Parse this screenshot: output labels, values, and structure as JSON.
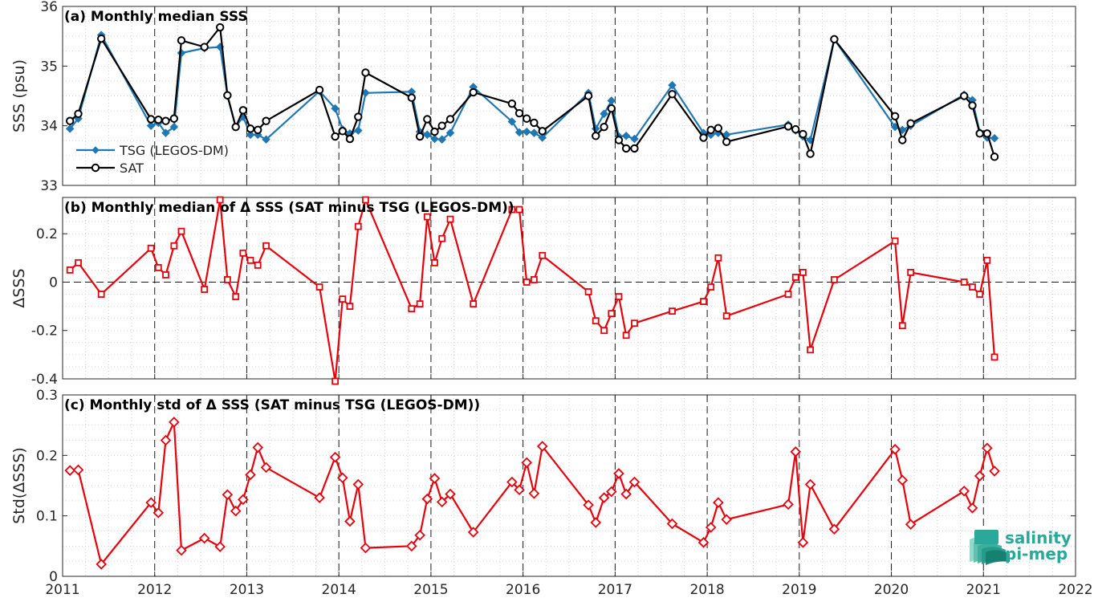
{
  "chart_data": [
    {
      "type": "line",
      "panel": "a",
      "title": "(a) Monthly median SSS",
      "ylabel": "SSS (psu)",
      "xlim": [
        2011,
        2022
      ],
      "ylim": [
        33,
        36
      ],
      "yticks": [
        33,
        34,
        35,
        36
      ],
      "ytick_labels": [
        "33",
        "34",
        "35",
        "36"
      ],
      "legend_position": "lower-left",
      "series": [
        {
          "name": "TSG (LEGOS-DM)",
          "color": "#1f77b4",
          "marker": "diamond",
          "x": [
            2011.08,
            2011.17,
            2011.42,
            2011.96,
            2012.04,
            2012.12,
            2012.21,
            2012.29,
            2012.54,
            2012.71,
            2012.79,
            2012.88,
            2012.96,
            2013.04,
            2013.12,
            2013.21,
            2013.79,
            2013.96,
            2014.04,
            2014.12,
            2014.21,
            2014.29,
            2014.79,
            2014.88,
            2014.96,
            2015.04,
            2015.12,
            2015.21,
            2015.46,
            2015.88,
            2015.96,
            2016.04,
            2016.12,
            2016.21,
            2016.71,
            2016.79,
            2016.88,
            2016.96,
            2017.04,
            2017.12,
            2017.21,
            2017.62,
            2017.96,
            2018.04,
            2018.12,
            2018.21,
            2018.88,
            2018.96,
            2019.04,
            2019.12,
            2019.38,
            2020.04,
            2020.12,
            2020.21,
            2020.79,
            2020.88,
            2020.96,
            2021.04,
            2021.12
          ],
          "y": [
            33.95,
            34.12,
            35.52,
            34.0,
            34.05,
            33.88,
            33.98,
            35.22,
            35.3,
            35.32,
            34.5,
            33.98,
            34.15,
            33.85,
            33.85,
            33.77,
            34.58,
            34.29,
            33.94,
            33.87,
            33.92,
            34.55,
            34.57,
            33.9,
            33.85,
            33.78,
            33.77,
            33.88,
            34.65,
            34.07,
            33.89,
            33.9,
            33.88,
            33.8,
            34.55,
            33.95,
            34.2,
            34.42,
            33.82,
            33.83,
            33.78,
            34.68,
            33.88,
            33.85,
            33.88,
            33.85,
            34.02,
            33.92,
            33.82,
            33.76,
            35.45,
            33.98,
            33.93,
            34.0,
            34.52,
            34.43,
            33.89,
            33.8,
            33.79
          ]
        },
        {
          "name": "SAT",
          "color": "#000000",
          "marker": "circle",
          "x": [
            2011.08,
            2011.17,
            2011.42,
            2011.96,
            2012.04,
            2012.12,
            2012.21,
            2012.29,
            2012.54,
            2012.71,
            2012.79,
            2012.88,
            2012.96,
            2013.04,
            2013.12,
            2013.21,
            2013.79,
            2013.96,
            2014.04,
            2014.12,
            2014.21,
            2014.29,
            2014.79,
            2014.88,
            2014.96,
            2015.04,
            2015.12,
            2015.21,
            2015.46,
            2015.88,
            2015.96,
            2016.04,
            2016.12,
            2016.21,
            2016.71,
            2016.79,
            2016.88,
            2016.96,
            2017.04,
            2017.12,
            2017.21,
            2017.62,
            2017.96,
            2018.04,
            2018.12,
            2018.21,
            2018.88,
            2018.96,
            2019.04,
            2019.12,
            2019.38,
            2020.04,
            2020.12,
            2020.21,
            2020.79,
            2020.88,
            2020.96,
            2021.04,
            2021.12
          ],
          "y": [
            34.08,
            34.2,
            35.46,
            34.11,
            34.1,
            34.08,
            34.12,
            35.43,
            35.32,
            35.65,
            34.51,
            33.98,
            34.26,
            33.95,
            33.93,
            34.08,
            34.6,
            33.82,
            33.91,
            33.78,
            34.15,
            34.89,
            34.47,
            33.82,
            34.11,
            33.9,
            34.0,
            34.11,
            34.56,
            34.37,
            34.21,
            34.12,
            34.05,
            33.91,
            34.5,
            33.83,
            33.98,
            34.29,
            33.76,
            33.62,
            33.62,
            34.53,
            33.8,
            33.93,
            33.96,
            33.73,
            33.99,
            33.94,
            33.86,
            33.53,
            35.45,
            34.16,
            33.76,
            34.04,
            34.5,
            34.34,
            33.87,
            33.87,
            33.48
          ]
        }
      ]
    },
    {
      "type": "line",
      "panel": "b",
      "title": "(b) Monthly median of Δ SSS (SAT minus TSG (LEGOS-DM))",
      "ylabel": "ΔSSS",
      "xlim": [
        2011,
        2022
      ],
      "ylim": [
        -0.4,
        0.35
      ],
      "yticks": [
        -0.4,
        -0.2,
        0,
        0.2
      ],
      "ytick_labels": [
        "-0.4",
        "-0.2",
        "0",
        "0.2"
      ],
      "zero_line": true,
      "series": [
        {
          "name": "",
          "color": "#e8000b",
          "marker": "square",
          "x": [
            2011.08,
            2011.17,
            2011.42,
            2011.96,
            2012.04,
            2012.12,
            2012.21,
            2012.29,
            2012.54,
            2012.71,
            2012.79,
            2012.88,
            2012.96,
            2013.04,
            2013.12,
            2013.21,
            2013.79,
            2013.96,
            2014.04,
            2014.12,
            2014.21,
            2014.29,
            2014.79,
            2014.88,
            2014.96,
            2015.04,
            2015.12,
            2015.21,
            2015.46,
            2015.88,
            2015.96,
            2016.04,
            2016.12,
            2016.21,
            2016.71,
            2016.79,
            2016.88,
            2016.96,
            2017.04,
            2017.12,
            2017.21,
            2017.62,
            2017.96,
            2018.04,
            2018.12,
            2018.21,
            2018.88,
            2018.96,
            2019.04,
            2019.12,
            2019.38,
            2020.04,
            2020.12,
            2020.21,
            2020.79,
            2020.88,
            2020.96,
            2021.04,
            2021.12
          ],
          "y": [
            0.05,
            0.08,
            -0.05,
            0.14,
            0.06,
            0.03,
            0.15,
            0.21,
            -0.03,
            0.34,
            0.01,
            -0.06,
            0.12,
            0.09,
            0.07,
            0.15,
            -0.02,
            -0.41,
            -0.07,
            -0.1,
            0.23,
            0.34,
            -0.11,
            -0.09,
            0.27,
            0.08,
            0.18,
            0.26,
            -0.09,
            0.3,
            0.3,
            0.0,
            0.01,
            0.11,
            -0.04,
            -0.16,
            -0.2,
            -0.13,
            -0.06,
            -0.22,
            -0.17,
            -0.12,
            -0.08,
            -0.02,
            0.1,
            -0.14,
            -0.05,
            0.02,
            0.04,
            -0.28,
            0.01,
            0.17,
            -0.18,
            0.04,
            0.0,
            -0.02,
            -0.05,
            0.09,
            -0.31
          ]
        }
      ]
    },
    {
      "type": "line",
      "panel": "c",
      "title": "(c) Monthly std of Δ SSS (SAT minus TSG (LEGOS-DM))",
      "ylabel": "Std(ΔSSS)",
      "xlabel": "",
      "xlim": [
        2011,
        2022
      ],
      "ylim": [
        0,
        0.3
      ],
      "yticks": [
        0,
        0.1,
        0.2,
        0.3
      ],
      "ytick_labels": [
        "0",
        "0.1",
        "0.2",
        "0.3"
      ],
      "xticks": [
        "2011",
        "2012",
        "2013",
        "2014",
        "2015",
        "2016",
        "2017",
        "2018",
        "2019",
        "2020",
        "2021",
        "2022"
      ],
      "series": [
        {
          "name": "",
          "color": "#e8000b",
          "marker": "diamond",
          "x": [
            2011.08,
            2011.17,
            2011.42,
            2011.96,
            2012.04,
            2012.12,
            2012.21,
            2012.29,
            2012.54,
            2012.71,
            2012.79,
            2012.88,
            2012.96,
            2013.04,
            2013.12,
            2013.21,
            2013.79,
            2013.96,
            2014.04,
            2014.12,
            2014.21,
            2014.29,
            2014.79,
            2014.88,
            2014.96,
            2015.04,
            2015.12,
            2015.21,
            2015.46,
            2015.88,
            2015.96,
            2016.04,
            2016.12,
            2016.21,
            2016.71,
            2016.79,
            2016.88,
            2016.96,
            2017.04,
            2017.12,
            2017.21,
            2017.62,
            2017.96,
            2018.04,
            2018.12,
            2018.21,
            2018.88,
            2018.96,
            2019.04,
            2019.12,
            2019.38,
            2020.04,
            2020.12,
            2020.21,
            2020.79,
            2020.88,
            2020.96,
            2021.04,
            2021.12
          ],
          "y": [
            0.175,
            0.176,
            0.02,
            0.122,
            0.105,
            0.225,
            0.255,
            0.043,
            0.063,
            0.049,
            0.135,
            0.108,
            0.127,
            0.168,
            0.213,
            0.18,
            0.13,
            0.197,
            0.163,
            0.091,
            0.152,
            0.047,
            0.05,
            0.068,
            0.128,
            0.162,
            0.123,
            0.136,
            0.073,
            0.156,
            0.143,
            0.188,
            0.137,
            0.215,
            0.118,
            0.089,
            0.13,
            0.14,
            0.17,
            0.136,
            0.156,
            0.087,
            0.056,
            0.081,
            0.122,
            0.094,
            0.119,
            0.206,
            0.056,
            0.152,
            0.078,
            0.21,
            0.159,
            0.086,
            0.141,
            0.113,
            0.166,
            0.212,
            0.174
          ]
        }
      ]
    }
  ],
  "logo": {
    "line1": "salinity",
    "line2": "pi-mep",
    "color": "#2aa899"
  }
}
